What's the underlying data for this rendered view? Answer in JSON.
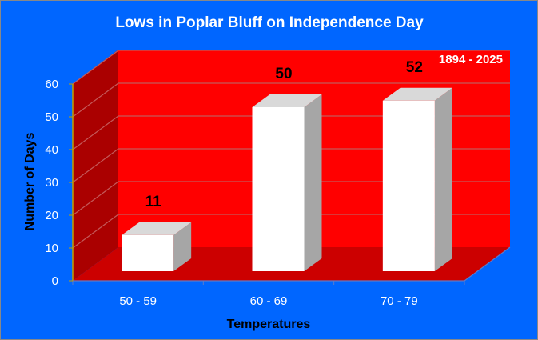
{
  "colors": {
    "background": "#0066FF",
    "back_wall": "#FF0000",
    "side_wall": "#AA0000",
    "floor": "#CC0000",
    "grid": "#C45A5A",
    "bar_front": "#FFFFFF",
    "bar_top": "#D9D9D9",
    "bar_side": "#A6A6A6",
    "axis_line": "#BFA000"
  },
  "chart_data": {
    "type": "bar",
    "title": "Lows in Poplar Bluff on Independence Day",
    "subtitle": "1894 - 2025",
    "xlabel": "Temperatures",
    "ylabel": "Number of Days",
    "categories": [
      "50 - 59",
      "60 - 69",
      "70 - 79"
    ],
    "values": [
      11,
      50,
      52
    ],
    "data_labels": [
      "11",
      "50",
      "52"
    ],
    "ylim": [
      0,
      60
    ],
    "yticks": [
      0,
      10,
      20,
      30,
      40,
      50,
      60
    ],
    "ytick_labels": [
      "0",
      "10",
      "20",
      "30",
      "40",
      "50",
      "60"
    ],
    "grid": true,
    "three_d": true,
    "legend": "none"
  }
}
